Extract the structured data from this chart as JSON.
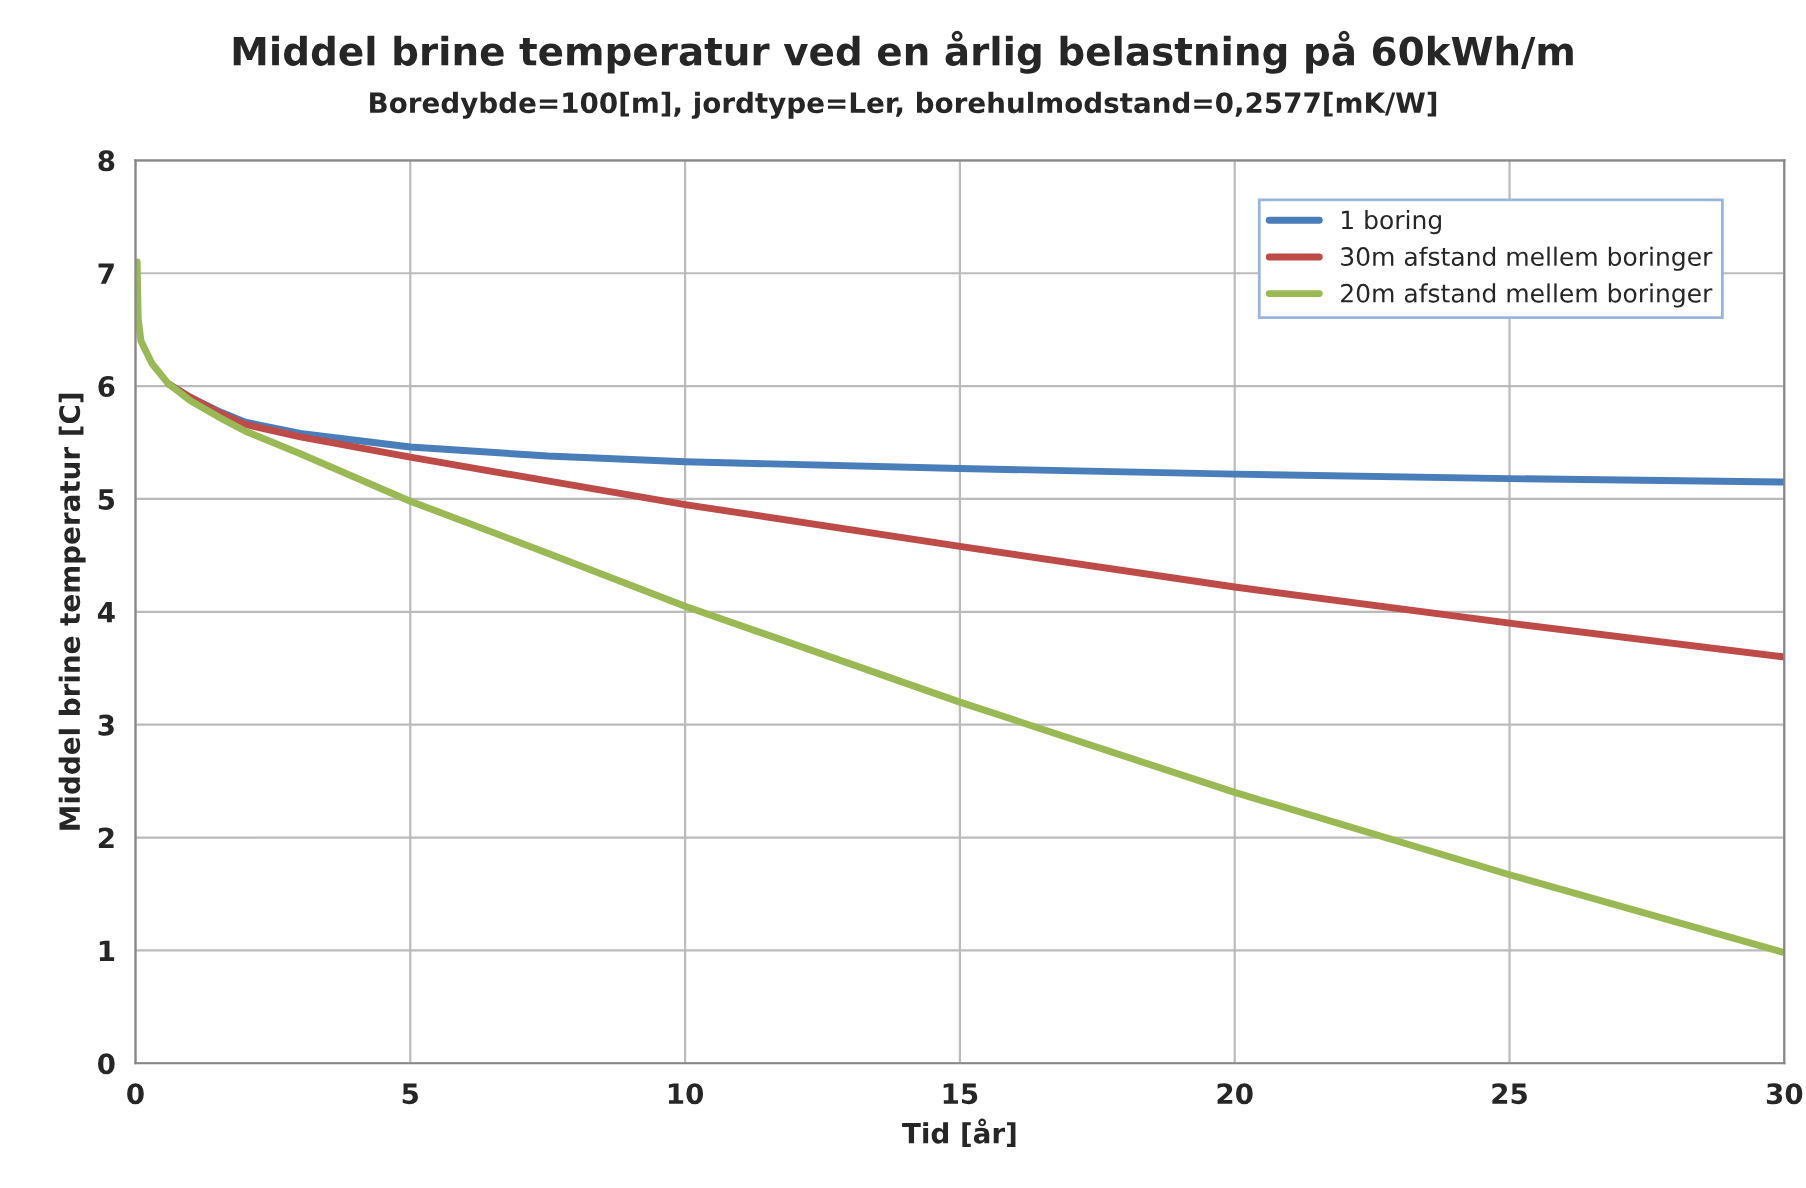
{
  "chart_data": {
    "type": "line",
    "title": "Middel brine temperatur ved en årlig belastning på 60kWh/m",
    "subtitle": "Boredybde=100[m], jordtype=Ler, borehulmodstand=0,2577[mK/W]",
    "xlabel": "Tid [år]",
    "ylabel": "Middel brine temperatur [C]",
    "xlim": [
      0,
      30
    ],
    "xticks": [
      0,
      5,
      10,
      15,
      20,
      25,
      30
    ],
    "ylim": [
      0,
      8
    ],
    "yticks": [
      0,
      1,
      2,
      3,
      4,
      5,
      6,
      7,
      8
    ],
    "grid": true,
    "legend": "top right",
    "series": [
      {
        "name": "1 boring",
        "color": "#4a7ebb",
        "x": [
          0.6,
          1,
          1.5,
          2,
          3,
          5,
          7.5,
          10,
          15,
          20,
          25,
          30
        ],
        "values": [
          6.02,
          5.9,
          5.78,
          5.68,
          5.58,
          5.46,
          5.38,
          5.33,
          5.27,
          5.22,
          5.18,
          5.15
        ]
      },
      {
        "name": "30m afstand mellem boringer",
        "color": "#be4b48",
        "x": [
          0.6,
          1,
          1.5,
          2,
          3,
          5,
          7.5,
          10,
          15,
          20,
          25,
          30
        ],
        "values": [
          6.02,
          5.9,
          5.77,
          5.66,
          5.55,
          5.37,
          5.16,
          4.95,
          4.58,
          4.22,
          3.9,
          3.6
        ]
      },
      {
        "name": "20m afstand mellem boringer",
        "color": "#98b954",
        "x": [
          0.03,
          0.05,
          0.1,
          0.3,
          0.6,
          1,
          1.5,
          2,
          3,
          5,
          7.5,
          10,
          15,
          20,
          25,
          30
        ],
        "values": [
          7.1,
          6.6,
          6.4,
          6.2,
          6.02,
          5.87,
          5.73,
          5.6,
          5.4,
          4.98,
          4.52,
          4.05,
          3.2,
          2.4,
          1.67,
          0.98
        ]
      }
    ]
  }
}
